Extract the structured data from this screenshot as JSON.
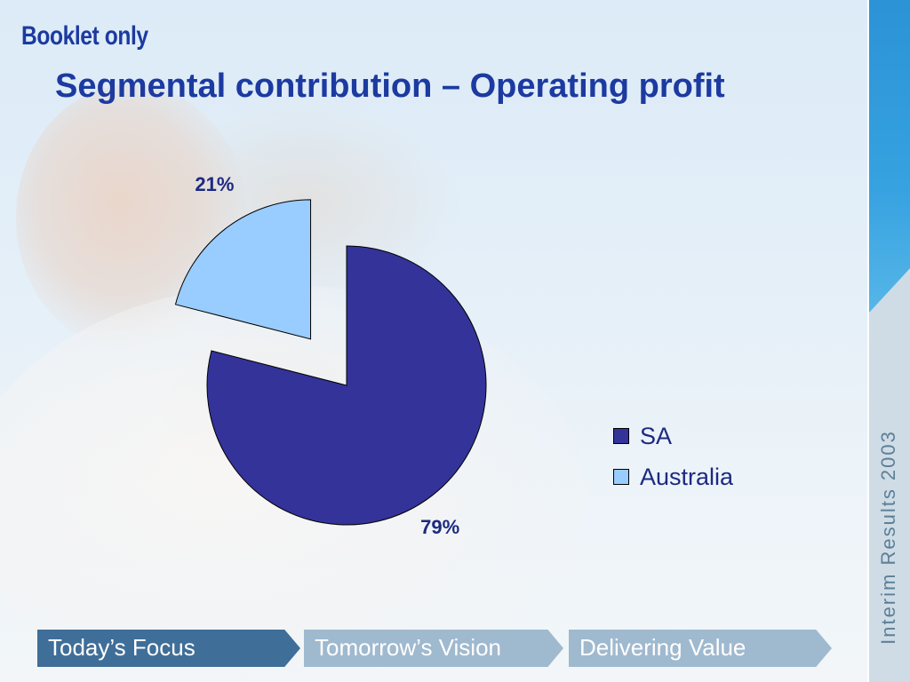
{
  "header": {
    "booklet_label": "Booklet only",
    "title": "Segmental contribution – Operating profit"
  },
  "chart_data": {
    "type": "pie",
    "title": "Segmental contribution – Operating profit",
    "slices": [
      {
        "label": "SA",
        "value": 79,
        "display": "79%",
        "color": "#333399"
      },
      {
        "label": "Australia",
        "value": 21,
        "display": "21%",
        "color": "#99ccff",
        "exploded": true
      }
    ],
    "legend_position": "right"
  },
  "legend": {
    "items": [
      {
        "label": "SA",
        "color": "#333399"
      },
      {
        "label": "Australia",
        "color": "#99ccff"
      }
    ]
  },
  "nav": {
    "tabs": [
      {
        "label": "Today’s Focus"
      },
      {
        "label": "Tomorrow’s Vision"
      },
      {
        "label": "Delivering Value"
      }
    ]
  },
  "sidebar": {
    "caption": "Interim Results 2003"
  }
}
